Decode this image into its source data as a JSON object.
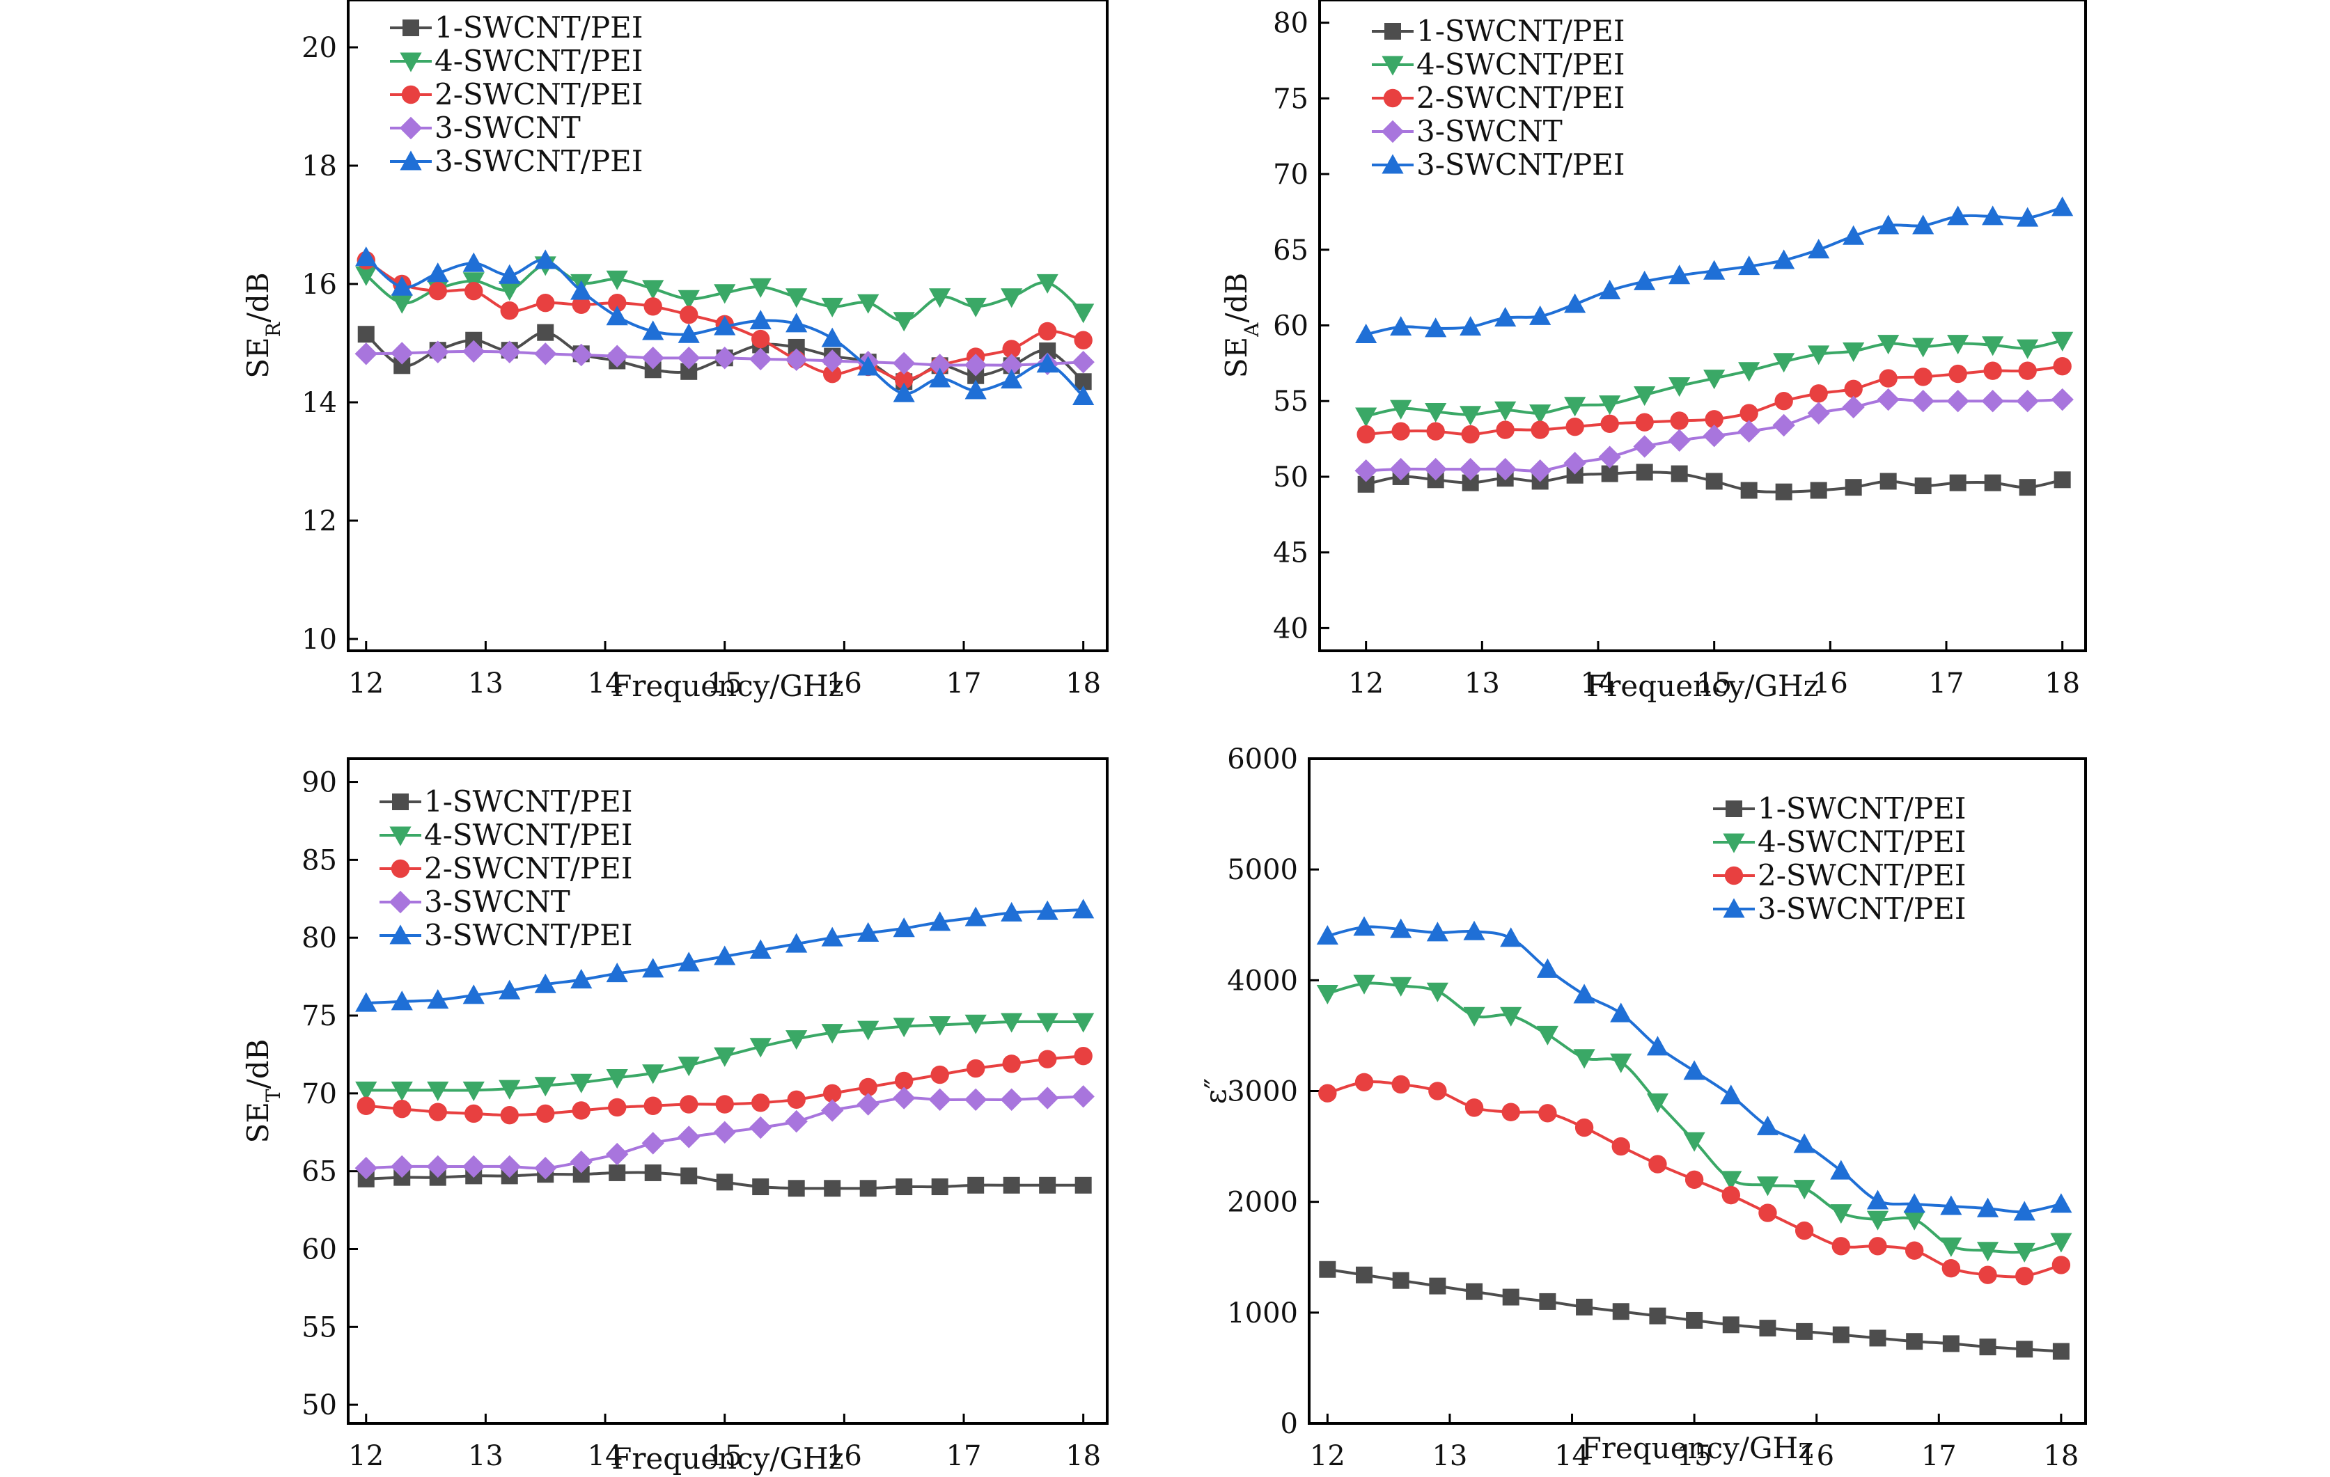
{
  "chart_data": [
    {
      "type": "line",
      "panel": "top-left",
      "title": "",
      "xlabel": "Frequency/GHz",
      "ylabel_main": "SE",
      "ylabel_sub": "R",
      "ylabel_unit": "/dB",
      "xlim": [
        11.85,
        18.2
      ],
      "ylim": [
        9.8,
        20.8
      ],
      "xticks": [
        12,
        13,
        14,
        15,
        16,
        17,
        18
      ],
      "yticks": [
        10,
        12,
        14,
        16,
        18,
        20
      ],
      "legend_position": "top-left",
      "x": [
        12.0,
        12.3,
        12.6,
        12.9,
        13.2,
        13.5,
        13.8,
        14.1,
        14.4,
        14.7,
        15.0,
        15.3,
        15.6,
        15.9,
        16.2,
        16.5,
        16.8,
        17.1,
        17.4,
        17.7,
        18.0
      ],
      "series": [
        {
          "name": "1-SWCNT/PEI",
          "marker": "square",
          "color": "#4d4d4d",
          "values": [
            15.15,
            14.62,
            14.88,
            15.05,
            14.88,
            15.18,
            14.82,
            14.7,
            14.55,
            14.52,
            14.75,
            14.97,
            14.93,
            14.78,
            14.68,
            14.35,
            14.62,
            14.45,
            14.62,
            14.87,
            14.35
          ]
        },
        {
          "name": "4-SWCNT/PEI",
          "marker": "triangle-down",
          "color": "#3aa866",
          "values": [
            16.15,
            15.68,
            15.92,
            16.05,
            15.9,
            16.32,
            16.02,
            16.08,
            15.92,
            15.75,
            15.85,
            15.95,
            15.78,
            15.62,
            15.68,
            15.38,
            15.78,
            15.62,
            15.78,
            16.02,
            15.52
          ]
        },
        {
          "name": "2-SWCNT/PEI",
          "marker": "circle",
          "color": "#e84040",
          "values": [
            16.4,
            16.0,
            15.88,
            15.88,
            15.55,
            15.68,
            15.65,
            15.68,
            15.62,
            15.48,
            15.32,
            15.07,
            14.72,
            14.48,
            14.6,
            14.38,
            14.62,
            14.77,
            14.9,
            15.2,
            15.05
          ]
        },
        {
          "name": "3-SWCNT",
          "marker": "diamond",
          "color": "#a875dd",
          "values": [
            14.82,
            14.83,
            14.85,
            14.86,
            14.85,
            14.82,
            14.8,
            14.78,
            14.75,
            14.75,
            14.75,
            14.73,
            14.72,
            14.7,
            14.68,
            14.66,
            14.63,
            14.63,
            14.63,
            14.65,
            14.68
          ]
        },
        {
          "name": "3-SWCNT/PEI",
          "marker": "triangle-up",
          "color": "#1f6fd6",
          "values": [
            16.45,
            15.95,
            16.18,
            16.35,
            16.15,
            16.4,
            15.88,
            15.45,
            15.2,
            15.15,
            15.28,
            15.38,
            15.33,
            15.08,
            14.6,
            14.15,
            14.4,
            14.2,
            14.38,
            14.65,
            14.1
          ]
        }
      ]
    },
    {
      "type": "line",
      "panel": "top-right",
      "title": "",
      "xlabel": "Frequency/GHz",
      "ylabel_main": "SE",
      "ylabel_sub": "A",
      "ylabel_unit": "/dB",
      "xlim": [
        11.6,
        18.2
      ],
      "ylim": [
        38.5,
        81.5
      ],
      "xticks": [
        12,
        13,
        14,
        15,
        16,
        17,
        18
      ],
      "yticks": [
        40,
        45,
        50,
        55,
        60,
        65,
        70,
        75,
        80
      ],
      "legend_position": "top-left",
      "x": [
        12.0,
        12.3,
        12.6,
        12.9,
        13.2,
        13.5,
        13.8,
        14.1,
        14.4,
        14.7,
        15.0,
        15.3,
        15.6,
        15.9,
        16.2,
        16.5,
        16.8,
        17.1,
        17.4,
        17.7,
        18.0
      ],
      "series": [
        {
          "name": "1-SWCNT/PEI",
          "marker": "square",
          "color": "#4d4d4d",
          "values": [
            49.5,
            50.0,
            49.8,
            49.6,
            49.9,
            49.7,
            50.1,
            50.2,
            50.3,
            50.2,
            49.7,
            49.1,
            49.0,
            49.1,
            49.3,
            49.7,
            49.4,
            49.6,
            49.6,
            49.3,
            49.8
          ]
        },
        {
          "name": "4-SWCNT/PEI",
          "marker": "triangle-down",
          "color": "#3aa866",
          "values": [
            54.0,
            54.5,
            54.3,
            54.1,
            54.4,
            54.2,
            54.7,
            54.8,
            55.4,
            56.0,
            56.5,
            57.0,
            57.6,
            58.1,
            58.3,
            58.8,
            58.6,
            58.8,
            58.7,
            58.5,
            59.0
          ]
        },
        {
          "name": "2-SWCNT/PEI",
          "marker": "circle",
          "color": "#e84040",
          "values": [
            52.8,
            53.0,
            53.0,
            52.8,
            53.1,
            53.1,
            53.3,
            53.5,
            53.6,
            53.7,
            53.8,
            54.2,
            55.0,
            55.5,
            55.8,
            56.5,
            56.6,
            56.8,
            57.0,
            57.0,
            57.3
          ]
        },
        {
          "name": "3-SWCNT",
          "marker": "diamond",
          "color": "#a875dd",
          "values": [
            50.4,
            50.5,
            50.5,
            50.5,
            50.5,
            50.4,
            50.9,
            51.3,
            52.0,
            52.4,
            52.7,
            53.0,
            53.4,
            54.2,
            54.6,
            55.1,
            55.0,
            55.0,
            55.0,
            55.0,
            55.1
          ]
        },
        {
          "name": "3-SWCNT/PEI",
          "marker": "triangle-up",
          "color": "#1f6fd6",
          "values": [
            59.4,
            59.9,
            59.8,
            59.9,
            60.5,
            60.6,
            61.4,
            62.3,
            62.9,
            63.3,
            63.6,
            63.9,
            64.3,
            65.0,
            65.9,
            66.6,
            66.6,
            67.2,
            67.2,
            67.1,
            67.8
          ]
        }
      ]
    },
    {
      "type": "line",
      "panel": "bottom-left",
      "title": "",
      "xlabel": "Frequency/GHz",
      "ylabel_main": "SE",
      "ylabel_sub": "T",
      "ylabel_unit": "/dB",
      "xlim": [
        11.85,
        18.2
      ],
      "ylim": [
        48.8,
        91.5
      ],
      "xticks": [
        12,
        13,
        14,
        15,
        16,
        17,
        18
      ],
      "yticks": [
        50,
        55,
        60,
        65,
        70,
        75,
        80,
        85,
        90
      ],
      "legend_position": "top-left",
      "x": [
        12.0,
        12.3,
        12.6,
        12.9,
        13.2,
        13.5,
        13.8,
        14.1,
        14.4,
        14.7,
        15.0,
        15.3,
        15.6,
        15.9,
        16.2,
        16.5,
        16.8,
        17.1,
        17.4,
        17.7,
        18.0
      ],
      "series": [
        {
          "name": "1-SWCNT/PEI",
          "marker": "square",
          "color": "#4d4d4d",
          "values": [
            64.5,
            64.6,
            64.6,
            64.7,
            64.7,
            64.8,
            64.8,
            64.9,
            64.9,
            64.7,
            64.3,
            64.0,
            63.9,
            63.9,
            63.9,
            64.0,
            64.0,
            64.1,
            64.1,
            64.1,
            64.1
          ]
        },
        {
          "name": "4-SWCNT/PEI",
          "marker": "triangle-down",
          "color": "#3aa866",
          "values": [
            70.2,
            70.2,
            70.2,
            70.2,
            70.3,
            70.5,
            70.7,
            71.0,
            71.3,
            71.8,
            72.4,
            73.0,
            73.5,
            73.9,
            74.1,
            74.3,
            74.4,
            74.5,
            74.6,
            74.6,
            74.6
          ]
        },
        {
          "name": "2-SWCNT/PEI",
          "marker": "circle",
          "color": "#e84040",
          "values": [
            69.2,
            69.0,
            68.8,
            68.7,
            68.6,
            68.7,
            68.9,
            69.1,
            69.2,
            69.3,
            69.3,
            69.4,
            69.6,
            70.0,
            70.4,
            70.8,
            71.2,
            71.6,
            71.9,
            72.2,
            72.4
          ]
        },
        {
          "name": "3-SWCNT",
          "marker": "diamond",
          "color": "#a875dd",
          "values": [
            65.2,
            65.3,
            65.3,
            65.3,
            65.3,
            65.2,
            65.6,
            66.1,
            66.8,
            67.2,
            67.5,
            67.8,
            68.2,
            68.9,
            69.3,
            69.7,
            69.6,
            69.6,
            69.6,
            69.7,
            69.8
          ]
        },
        {
          "name": "3-SWCNT/PEI",
          "marker": "triangle-up",
          "color": "#1f6fd6",
          "values": [
            75.8,
            75.9,
            76.0,
            76.3,
            76.6,
            77.0,
            77.3,
            77.7,
            78.0,
            78.4,
            78.8,
            79.2,
            79.6,
            80.0,
            80.3,
            80.6,
            81.0,
            81.3,
            81.6,
            81.7,
            81.8
          ]
        }
      ]
    },
    {
      "type": "line",
      "panel": "bottom-right",
      "title": "",
      "xlabel": "Frequency/GHz",
      "ylabel_main": "ε″",
      "ylabel_sub": "",
      "ylabel_unit": "",
      "xlim": [
        11.85,
        18.2
      ],
      "ylim": [
        0,
        6000
      ],
      "xticks": [
        12,
        13,
        14,
        15,
        16,
        17,
        18
      ],
      "yticks": [
        0,
        1000,
        2000,
        3000,
        4000,
        5000,
        6000
      ],
      "legend_position": "top-right",
      "x": [
        12.0,
        12.3,
        12.6,
        12.9,
        13.2,
        13.5,
        13.8,
        14.1,
        14.4,
        14.7,
        15.0,
        15.3,
        15.6,
        15.9,
        16.2,
        16.5,
        16.8,
        17.1,
        17.4,
        17.7,
        18.0
      ],
      "series": [
        {
          "name": "1-SWCNT/PEI",
          "marker": "square",
          "color": "#4d4d4d",
          "values": [
            1390,
            1340,
            1290,
            1240,
            1190,
            1140,
            1100,
            1050,
            1010,
            970,
            930,
            890,
            860,
            830,
            800,
            770,
            740,
            720,
            690,
            670,
            650
          ]
        },
        {
          "name": "4-SWCNT/PEI",
          "marker": "triangle-down",
          "color": "#3aa866",
          "values": [
            3880,
            3970,
            3950,
            3900,
            3680,
            3680,
            3510,
            3300,
            3260,
            2900,
            2550,
            2200,
            2150,
            2120,
            1900,
            1840,
            1840,
            1600,
            1560,
            1550,
            1640
          ]
        },
        {
          "name": "2-SWCNT/PEI",
          "marker": "circle",
          "color": "#e84040",
          "values": [
            2980,
            3080,
            3060,
            3000,
            2850,
            2810,
            2800,
            2670,
            2500,
            2340,
            2200,
            2060,
            1900,
            1740,
            1600,
            1600,
            1560,
            1400,
            1340,
            1330,
            1430
          ]
        },
        {
          "name": "3-SWCNT/PEI",
          "marker": "triangle-up",
          "color": "#1f6fd6",
          "values": [
            4400,
            4480,
            4460,
            4430,
            4440,
            4380,
            4100,
            3870,
            3700,
            3400,
            3180,
            2960,
            2680,
            2520,
            2280,
            2010,
            1980,
            1960,
            1940,
            1910,
            1980
          ]
        }
      ]
    }
  ]
}
